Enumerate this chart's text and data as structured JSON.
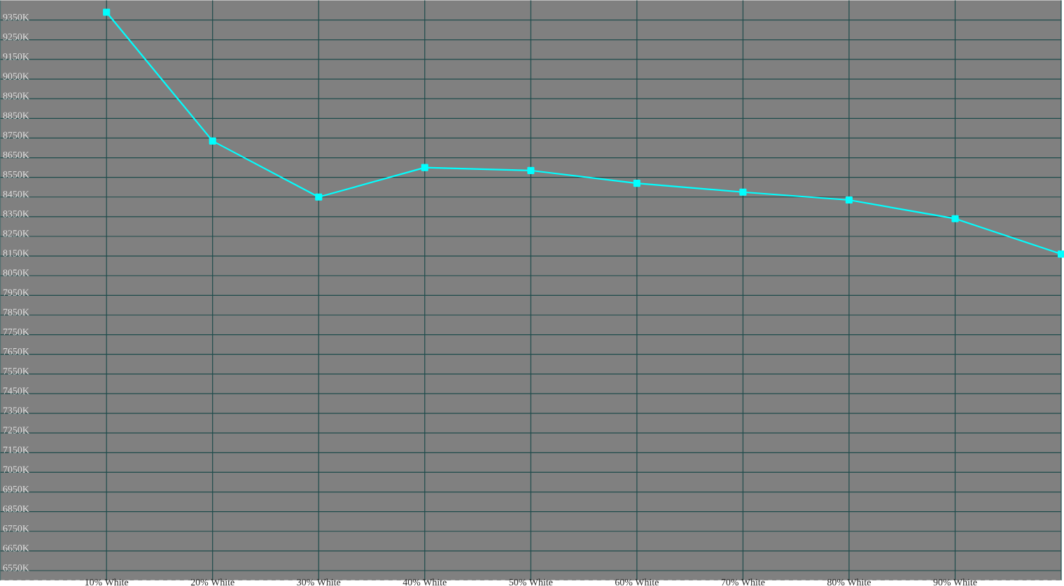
{
  "chart_data": {
    "type": "line",
    "x": [
      10,
      20,
      30,
      40,
      50,
      60,
      70,
      80,
      90,
      100
    ],
    "series": [
      {
        "color": "#00ffff",
        "values": [
          9390,
          8735,
          8450,
          8600,
          8585,
          8520,
          8475,
          8435,
          8340,
          8160
        ]
      }
    ],
    "xlim": [
      0,
      100
    ],
    "xticks": [
      {
        "value": 10,
        "label": "10% White"
      },
      {
        "value": 20,
        "label": "20% White"
      },
      {
        "value": 30,
        "label": "30% White"
      },
      {
        "value": 40,
        "label": "40% White"
      },
      {
        "value": 50,
        "label": "50% White"
      },
      {
        "value": 60,
        "label": "60% White"
      },
      {
        "value": 70,
        "label": "70% White"
      },
      {
        "value": 80,
        "label": "80% White"
      },
      {
        "value": 90,
        "label": "90% White"
      },
      {
        "value": 100,
        "label": null
      }
    ],
    "ylim": [
      6500,
      9450
    ],
    "yticks": [
      {
        "value": 6550,
        "label": "6550K"
      },
      {
        "value": 6650,
        "label": "6650K"
      },
      {
        "value": 6750,
        "label": "6750K"
      },
      {
        "value": 6850,
        "label": "6850K"
      },
      {
        "value": 6950,
        "label": "6950K"
      },
      {
        "value": 7050,
        "label": "7050K"
      },
      {
        "value": 7150,
        "label": "7150K"
      },
      {
        "value": 7250,
        "label": "7250K"
      },
      {
        "value": 7350,
        "label": "7350K"
      },
      {
        "value": 7450,
        "label": "7450K"
      },
      {
        "value": 7550,
        "label": "7550K"
      },
      {
        "value": 7650,
        "label": "7650K"
      },
      {
        "value": 7750,
        "label": "7750K"
      },
      {
        "value": 7850,
        "label": "7850K"
      },
      {
        "value": 7950,
        "label": "7950K"
      },
      {
        "value": 8050,
        "label": "8050K"
      },
      {
        "value": 8150,
        "label": "8150K"
      },
      {
        "value": 8250,
        "label": "8250K"
      },
      {
        "value": 8350,
        "label": "8350K"
      },
      {
        "value": 8450,
        "label": "8450K"
      },
      {
        "value": 8550,
        "label": "8550K"
      },
      {
        "value": 8650,
        "label": "8650K"
      },
      {
        "value": 8750,
        "label": "8750K"
      },
      {
        "value": 8850,
        "label": "8850K"
      },
      {
        "value": 8950,
        "label": "8950K"
      },
      {
        "value": 9050,
        "label": "9050K"
      },
      {
        "value": 9150,
        "label": "9150K"
      },
      {
        "value": 9250,
        "label": "9250K"
      },
      {
        "value": 9350,
        "label": "9350K"
      }
    ],
    "grid": true,
    "marker": "square",
    "line_style": "solid"
  }
}
